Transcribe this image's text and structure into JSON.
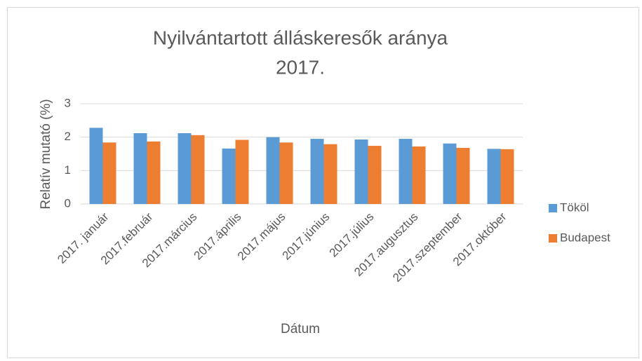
{
  "chart_data": {
    "type": "bar",
    "title": [
      "Nyilvántartott álláskeresők aránya",
      "2017."
    ],
    "x_label": "Dátum",
    "y_label": "Relatív mutató (%)",
    "categories": [
      "2017. január",
      "2017.február",
      "2017.március",
      "2017.április",
      "2017.május",
      "2017.június",
      "2017.július",
      "2017.augusztus",
      "2017.szeptember",
      "2017.október"
    ],
    "series": [
      {
        "name": "Tököl",
        "color": "#5b9bd5",
        "values": [
          2.28,
          2.12,
          2.12,
          1.66,
          2.0,
          1.95,
          1.93,
          1.95,
          1.81,
          1.65
        ]
      },
      {
        "name": "Budapest",
        "color": "#ed7d31",
        "values": [
          1.84,
          1.87,
          2.06,
          1.92,
          1.84,
          1.79,
          1.74,
          1.72,
          1.68,
          1.64
        ]
      }
    ],
    "ylim": [
      0,
      3
    ],
    "yticks": [
      0,
      1,
      2,
      3
    ],
    "grid": true,
    "legend": "right"
  }
}
